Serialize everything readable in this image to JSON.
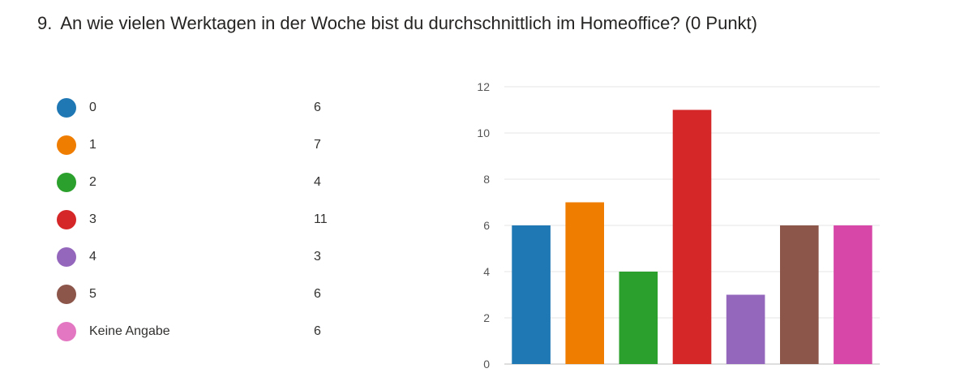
{
  "question": {
    "number": "9.",
    "text": "An wie vielen Werktagen in der Woche bist du durchschnittlich im Homeoffice? (0 Punkt)"
  },
  "legend": [
    {
      "label": "0",
      "count": "6",
      "color": "#1f77b4"
    },
    {
      "label": "1",
      "count": "7",
      "color": "#ef7d00"
    },
    {
      "label": "2",
      "count": "4",
      "color": "#2ca02c"
    },
    {
      "label": "3",
      "count": "11",
      "color": "#d62728"
    },
    {
      "label": "4",
      "count": "3",
      "color": "#9467bd"
    },
    {
      "label": "5",
      "count": "6",
      "color": "#8c564b"
    },
    {
      "label": "Keine Angabe",
      "count": "6",
      "color": "#e377c2"
    }
  ],
  "chart_data": {
    "type": "bar",
    "categories": [
      "0",
      "1",
      "2",
      "3",
      "4",
      "5",
      "Keine Angabe"
    ],
    "values": [
      6,
      7,
      4,
      11,
      3,
      6,
      6
    ],
    "colors": [
      "#1f77b4",
      "#ef7d00",
      "#2ca02c",
      "#d62728",
      "#9467bd",
      "#8c564b",
      "#d647a8"
    ],
    "ylim": [
      0,
      12
    ],
    "yticks": [
      0,
      2,
      4,
      6,
      8,
      10,
      12
    ],
    "grid": true,
    "legend_position": "left"
  }
}
